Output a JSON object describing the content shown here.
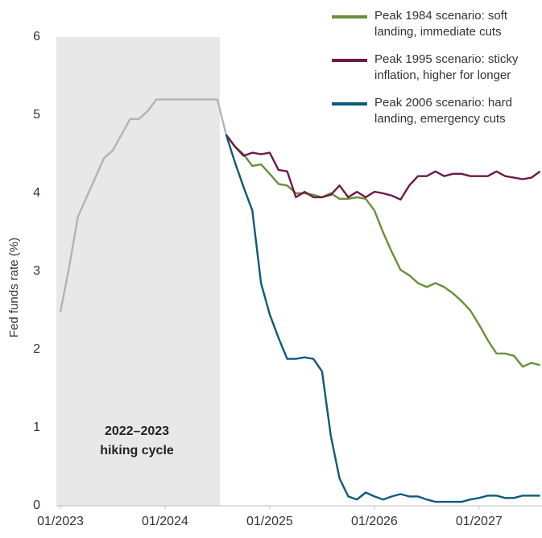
{
  "chart_data": {
    "type": "line",
    "ylabel": "Fed funds rate (%)",
    "x": [
      "01/2023",
      "02/2023",
      "03/2023",
      "04/2023",
      "05/2023",
      "06/2023",
      "07/2023",
      "08/2023",
      "09/2023",
      "10/2023",
      "11/2023",
      "12/2023",
      "01/2024",
      "02/2024",
      "03/2024",
      "04/2024",
      "05/2024",
      "06/2024",
      "07/2024",
      "08/2024",
      "09/2024",
      "10/2024",
      "11/2024",
      "12/2024",
      "01/2025",
      "02/2025",
      "03/2025",
      "04/2025",
      "05/2025",
      "06/2025",
      "07/2025",
      "08/2025",
      "09/2025",
      "10/2025",
      "11/2025",
      "12/2025",
      "01/2026",
      "02/2026",
      "03/2026",
      "04/2026",
      "05/2026",
      "06/2026",
      "07/2026",
      "08/2026",
      "09/2026",
      "10/2026",
      "11/2026",
      "12/2026",
      "01/2027",
      "02/2027",
      "03/2027",
      "04/2027",
      "05/2027",
      "06/2027",
      "07/2027",
      "08/2027"
    ],
    "xticks": [
      "01/2023",
      "01/2024",
      "01/2025",
      "01/2026",
      "01/2027"
    ],
    "ylim": [
      0,
      6
    ],
    "yticks": [
      0,
      1,
      2,
      3,
      4,
      5,
      6
    ],
    "shaded_range": [
      "01/2023",
      "07/2024"
    ],
    "annotation": [
      "2022–2023",
      "hiking cycle"
    ],
    "series": [
      {
        "color": "#b3b3b3",
        "values": [
          2.48,
          3.05,
          3.7,
          3.95,
          4.2,
          4.45,
          4.55,
          4.75,
          4.95,
          4.95,
          5.05,
          5.2,
          5.2,
          5.2,
          5.2,
          5.2,
          5.2,
          5.2,
          5.2,
          4.75,
          null,
          null,
          null,
          null,
          null,
          null,
          null,
          null,
          null,
          null,
          null,
          null,
          null,
          null,
          null,
          null,
          null,
          null,
          null,
          null,
          null,
          null,
          null,
          null,
          null,
          null,
          null,
          null,
          null,
          null,
          null,
          null,
          null,
          null,
          null,
          null
        ]
      },
      {
        "name": "Peak 1984 scenario: soft landing, immediate cuts",
        "color": "#6a8f3a",
        "values": [
          null,
          null,
          null,
          null,
          null,
          null,
          null,
          null,
          null,
          null,
          null,
          null,
          null,
          null,
          null,
          null,
          null,
          null,
          null,
          4.75,
          4.6,
          4.5,
          4.35,
          4.37,
          4.25,
          4.12,
          4.1,
          4.0,
          4.0,
          3.98,
          3.95,
          4.0,
          3.93,
          3.93,
          3.95,
          3.93,
          3.78,
          3.5,
          3.25,
          3.02,
          2.95,
          2.85,
          2.8,
          2.85,
          2.8,
          2.72,
          2.62,
          2.5,
          2.32,
          2.12,
          1.95,
          1.95,
          1.92,
          1.78,
          1.83,
          1.8
        ]
      },
      {
        "name": "Peak 1995 scenario: sticky inflation, higher for longer",
        "color": "#6b1a4a",
        "values": [
          null,
          null,
          null,
          null,
          null,
          null,
          null,
          null,
          null,
          null,
          null,
          null,
          null,
          null,
          null,
          null,
          null,
          null,
          null,
          4.75,
          4.6,
          4.48,
          4.52,
          4.5,
          4.52,
          4.3,
          4.28,
          3.95,
          4.02,
          3.95,
          3.95,
          3.98,
          4.1,
          3.95,
          4.02,
          3.95,
          4.02,
          4.0,
          3.97,
          3.92,
          4.1,
          4.22,
          4.22,
          4.28,
          4.22,
          4.25,
          4.25,
          4.22,
          4.22,
          4.22,
          4.28,
          4.22,
          4.2,
          4.18,
          4.2,
          4.28
        ]
      },
      {
        "name": "Peak 2006 scenario: hard landing, emergency cuts",
        "color": "#0d5a7a",
        "values": [
          null,
          null,
          null,
          null,
          null,
          null,
          null,
          null,
          null,
          null,
          null,
          null,
          null,
          null,
          null,
          null,
          null,
          null,
          null,
          4.75,
          4.4,
          4.08,
          3.78,
          2.85,
          2.45,
          2.15,
          1.88,
          1.88,
          1.9,
          1.88,
          1.72,
          0.9,
          0.35,
          0.12,
          0.08,
          0.17,
          0.12,
          0.08,
          0.12,
          0.15,
          0.12,
          0.12,
          0.08,
          0.05,
          0.05,
          0.05,
          0.05,
          0.08,
          0.1,
          0.13,
          0.13,
          0.1,
          0.1,
          0.13,
          0.13,
          0.13
        ]
      }
    ]
  }
}
